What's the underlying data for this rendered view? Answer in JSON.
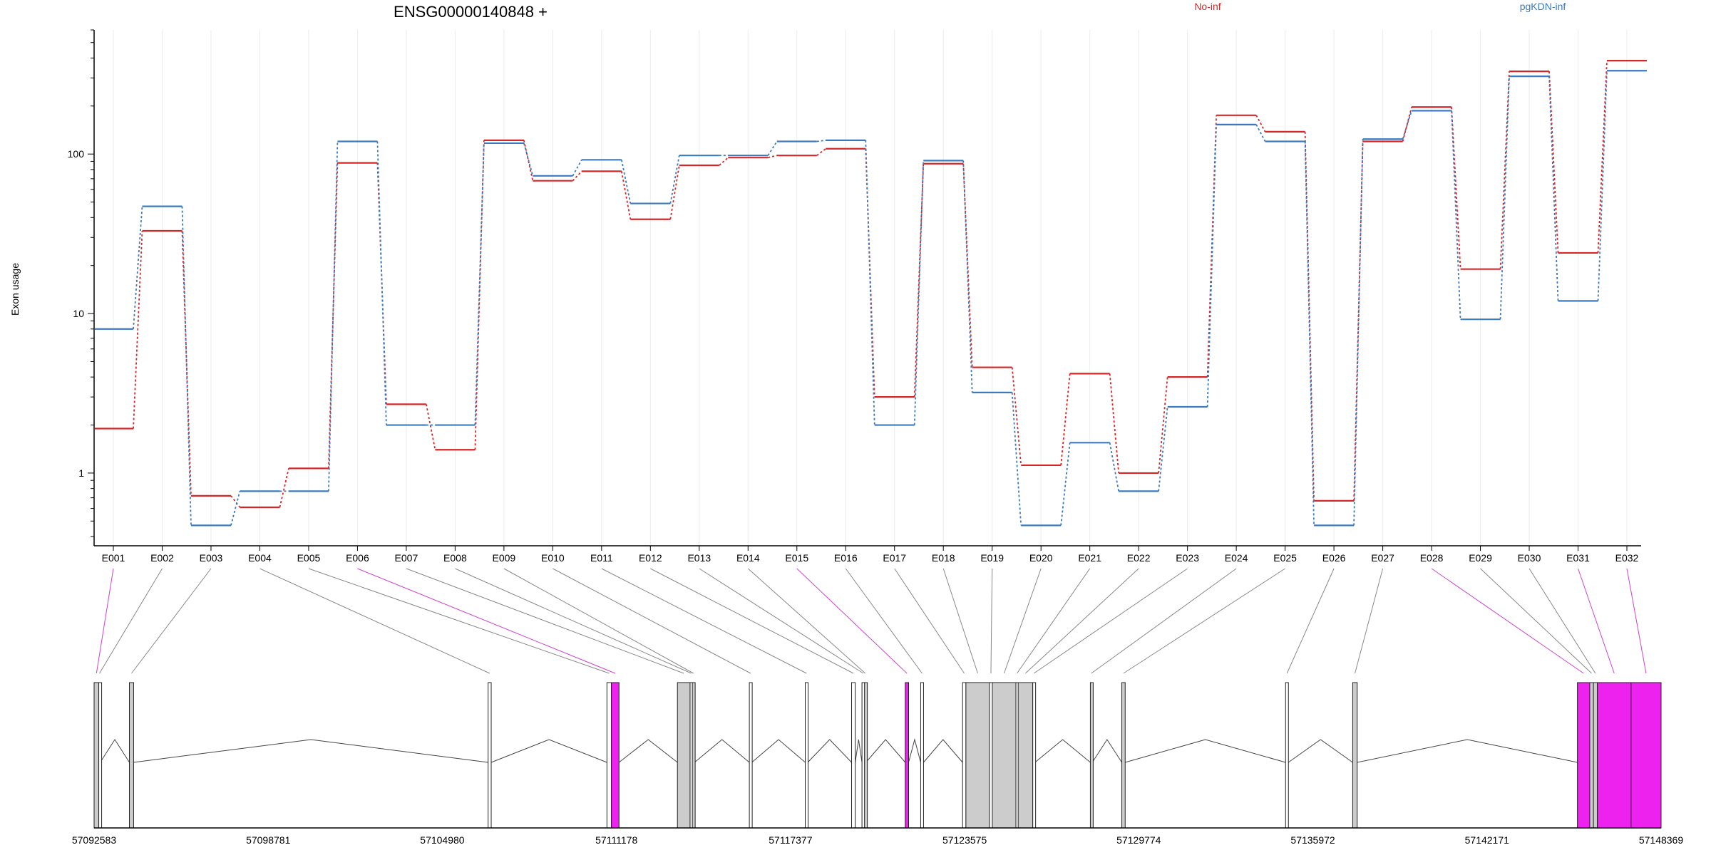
{
  "chart_data": {
    "type": "line",
    "title": "ENSG00000140848 +",
    "ylabel": "Exon usage",
    "yscale": "log",
    "ylim": [
      0.35,
      600
    ],
    "y_ticks": [
      1,
      10,
      100
    ],
    "y_tick_labels": [
      "1",
      "10",
      "100"
    ],
    "categories": [
      "E001",
      "E002",
      "E003",
      "E004",
      "E005",
      "E006",
      "E007",
      "E008",
      "E009",
      "E010",
      "E011",
      "E012",
      "E013",
      "E014",
      "E015",
      "E016",
      "E017",
      "E018",
      "E019",
      "E020",
      "E021",
      "E022",
      "E023",
      "E024",
      "E025",
      "E026",
      "E027",
      "E028",
      "E029",
      "E030",
      "E031",
      "E032"
    ],
    "series": [
      {
        "name": "No-inf",
        "color": "#d62728",
        "values": [
          1.9,
          33,
          0.72,
          0.61,
          1.07,
          88,
          2.7,
          1.4,
          122,
          68,
          78,
          39,
          85,
          95,
          98,
          108,
          3.0,
          87,
          4.6,
          1.12,
          4.2,
          1.0,
          4.0,
          175,
          138,
          0.67,
          120,
          197,
          19,
          330,
          24,
          385
        ]
      },
      {
        "name": "pgKDN-inf",
        "color": "#3a7abf",
        "values": [
          8,
          47,
          0.47,
          0.77,
          0.77,
          120,
          2.0,
          2.0,
          117,
          73,
          92,
          49,
          98,
          98,
          120,
          122,
          2.0,
          91,
          3.2,
          0.47,
          1.55,
          0.77,
          2.6,
          153,
          120,
          0.47,
          124,
          187,
          9.2,
          307,
          12,
          333
        ]
      }
    ],
    "legend_placement": "top",
    "grid": "vertical-light",
    "gene_model": {
      "coordinate_labels": [
        "57092583",
        "57098781",
        "57104980",
        "57111178",
        "57117377",
        "57123575",
        "57129774",
        "57135972",
        "57142171",
        "57148369"
      ],
      "range": [
        57092583,
        57148369
      ],
      "exons": [
        {
          "id": "E001",
          "start": 57092583,
          "end": 57092750,
          "fill": "#cccccc",
          "connector": "#cc44cc"
        },
        {
          "id": "E002",
          "start": 57092750,
          "end": 57092800,
          "fill": "#ffffff",
          "connector": "#888888"
        },
        {
          "id": "E003",
          "start": 57093840,
          "end": 57093990,
          "fill": "#cccccc",
          "connector": "#888888"
        },
        {
          "id": "E004",
          "start": 57106610,
          "end": 57106720,
          "fill": "#ffffff",
          "connector": "#888888"
        },
        {
          "id": "E005",
          "start": 57110840,
          "end": 57111000,
          "fill": "#ffffff",
          "connector": "#888888"
        },
        {
          "id": "E006",
          "start": 57111000,
          "end": 57111270,
          "fill": "#ee22ee",
          "connector": "#cc44cc"
        },
        {
          "id": "E007",
          "start": 57113350,
          "end": 57113800,
          "fill": "#cccccc",
          "connector": "#888888"
        },
        {
          "id": "E008",
          "start": 57113800,
          "end": 57113880,
          "fill": "#ffffff",
          "connector": "#888888"
        },
        {
          "id": "E009",
          "start": 57113880,
          "end": 57113960,
          "fill": "#cccccc",
          "connector": "#888888"
        },
        {
          "id": "E010",
          "start": 57115910,
          "end": 57116000,
          "fill": "#ffffff",
          "connector": "#888888"
        },
        {
          "id": "E011",
          "start": 57117900,
          "end": 57117990,
          "fill": "#ffffff",
          "connector": "#888888"
        },
        {
          "id": "E012",
          "start": 57119550,
          "end": 57119680,
          "fill": "#ffffff",
          "connector": "#888888"
        },
        {
          "id": "E013",
          "start": 57119920,
          "end": 57120010,
          "fill": "#ffffff",
          "connector": "#888888"
        },
        {
          "id": "E014",
          "start": 57120010,
          "end": 57120060,
          "fill": "#cccccc",
          "connector": "#888888"
        },
        {
          "id": "E015",
          "start": 57121460,
          "end": 57121580,
          "fill": "#ee22ee",
          "connector": "#cc44cc"
        },
        {
          "id": "E016",
          "start": 57122010,
          "end": 57122110,
          "fill": "#ffffff",
          "connector": "#888888"
        },
        {
          "id": "E017",
          "start": 57123500,
          "end": 57123620,
          "fill": "#ffffff",
          "connector": "#888888"
        },
        {
          "id": "E018",
          "start": 57123620,
          "end": 57124460,
          "fill": "#cccccc",
          "connector": "#888888"
        },
        {
          "id": "E019",
          "start": 57124460,
          "end": 57124560,
          "fill": "#ffffff",
          "connector": "#888888"
        },
        {
          "id": "E020",
          "start": 57124560,
          "end": 57125400,
          "fill": "#cccccc",
          "connector": "#888888"
        },
        {
          "id": "E021",
          "start": 57125400,
          "end": 57125480,
          "fill": "#ffffff",
          "connector": "#888888"
        },
        {
          "id": "E022",
          "start": 57125480,
          "end": 57126000,
          "fill": "#cccccc",
          "connector": "#888888"
        },
        {
          "id": "E023",
          "start": 57126000,
          "end": 57126080,
          "fill": "#ffffff",
          "connector": "#888888"
        },
        {
          "id": "E024",
          "start": 57128050,
          "end": 57128120,
          "fill": "#cccccc",
          "connector": "#888888"
        },
        {
          "id": "E025",
          "start": 57129170,
          "end": 57129290,
          "fill": "#cccccc",
          "connector": "#888888"
        },
        {
          "id": "E026",
          "start": 57135000,
          "end": 57135100,
          "fill": "#ffffff",
          "connector": "#888888"
        },
        {
          "id": "E027",
          "start": 57137390,
          "end": 57137550,
          "fill": "#cccccc",
          "connector": "#888888"
        },
        {
          "id": "E028",
          "start": 57145390,
          "end": 57145830,
          "fill": "#ee22ee",
          "connector": "#cc44cc"
        },
        {
          "id": "E029",
          "start": 57145830,
          "end": 57145960,
          "fill": "#cccccc",
          "connector": "#888888"
        },
        {
          "id": "E030",
          "start": 57145960,
          "end": 57146100,
          "fill": "#cccccc",
          "connector": "#888888"
        },
        {
          "id": "E031",
          "start": 57146100,
          "end": 57147300,
          "fill": "#ee22ee",
          "connector": "#cc44cc"
        },
        {
          "id": "E032",
          "start": 57147300,
          "end": 57148369,
          "fill": "#ee22ee",
          "connector": "#cc44cc"
        }
      ]
    }
  }
}
